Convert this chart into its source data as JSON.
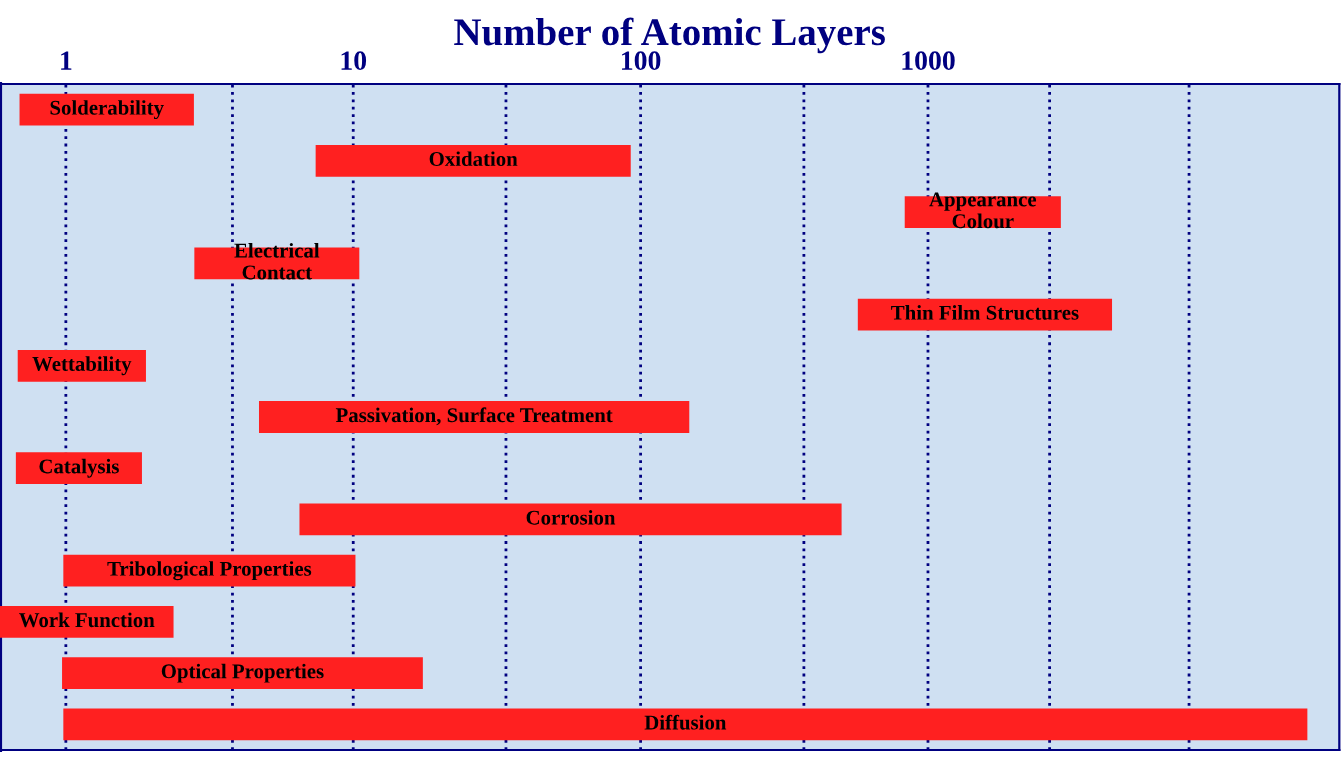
{
  "chart_data": {
    "type": "bar",
    "orientation": "horizontal",
    "xlabel": "Number of Atomic Layers",
    "categories": [
      "Solderability",
      "Oxidation",
      "Appearance\nColour",
      "Electrical\nContact",
      "Thin Film Structures",
      "Wettability",
      "Passivation, Surface Treatment",
      "Catalysis",
      "Corrosion",
      "Tribological Properties",
      "Work Function",
      "Optical Properties",
      "Diffusion"
    ],
    "base": [
      0.69,
      7.4,
      830,
      2.8,
      570,
      0.68,
      4.7,
      0.67,
      6.5,
      0.98,
      0.59,
      0.97,
      0.98
    ],
    "values": [
      2.1,
      85,
      2070,
      7.7,
      3800,
      1.22,
      143,
      1.17,
      494,
      9.2,
      1.78,
      16.5,
      20900
    ],
    "color": "#ff2020",
    "log": "x",
    "xlim": [
      0.59,
      27000
    ],
    "xticks": [
      1,
      {
        "value": 3.8,
        "label": null
      },
      10,
      {
        "value": 34,
        "label": null
      },
      100,
      {
        "value": 370,
        "label": null
      },
      1000,
      {
        "value": 2650,
        "label": null
      },
      {
        "value": 8100,
        "label": null
      }
    ],
    "grid": "x",
    "tick_labels": "x"
  }
}
